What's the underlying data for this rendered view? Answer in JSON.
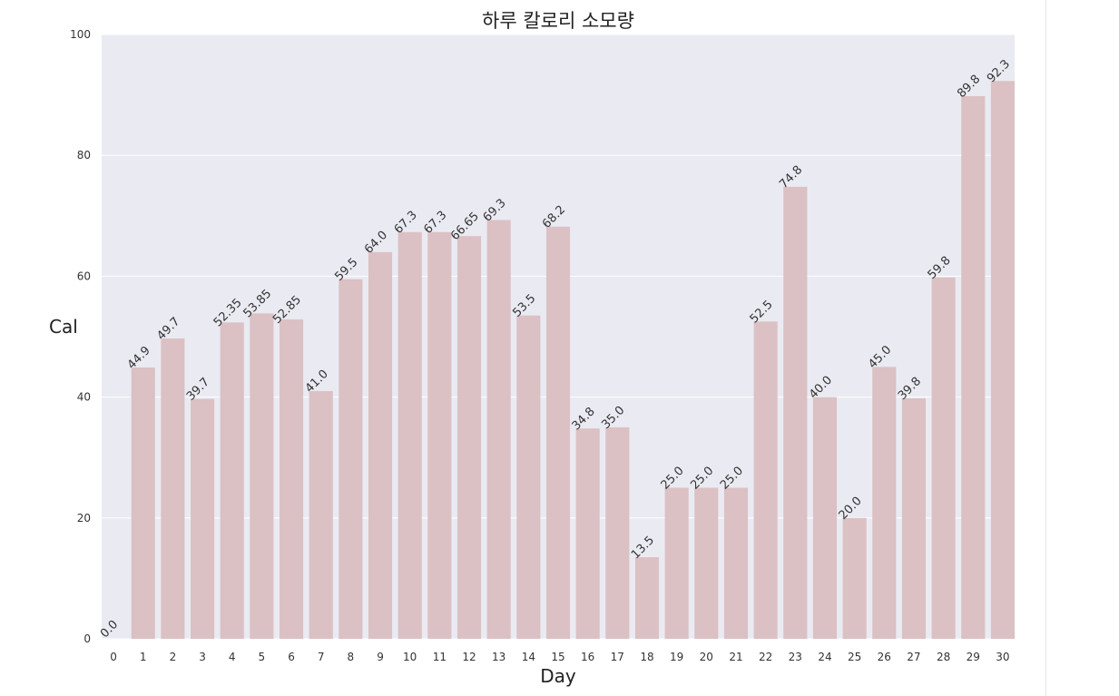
{
  "chart_data": {
    "type": "bar",
    "title": "하루 칼로리 소모량",
    "xlabel": "Day",
    "ylabel": "Cal",
    "categories": [
      "0",
      "1",
      "2",
      "3",
      "4",
      "5",
      "6",
      "7",
      "8",
      "9",
      "10",
      "11",
      "12",
      "13",
      "14",
      "15",
      "16",
      "17",
      "18",
      "19",
      "20",
      "21",
      "22",
      "23",
      "24",
      "25",
      "26",
      "27",
      "28",
      "29",
      "30"
    ],
    "values": [
      0,
      44.9,
      49.7,
      39.7,
      52.35,
      53.85,
      52.85,
      41,
      59.5,
      64,
      67.3,
      67.3,
      66.65,
      69.3,
      53.5,
      68.2,
      34.8,
      35,
      13.5,
      25,
      25,
      25,
      52.5,
      74.8,
      40,
      20,
      45,
      39.8,
      59.8,
      89.8,
      92.3
    ],
    "data_labels": [
      "0.0",
      "44.9",
      "49.7",
      "39.7",
      "52.35",
      "53.85",
      "52.85",
      "41.0",
      "59.5",
      "64.0",
      "67.3",
      "67.3",
      "66.65",
      "69.3",
      "53.5",
      "68.2",
      "34.8",
      "35.0",
      "13.5",
      "25.0",
      "25.0",
      "25.0",
      "52.5",
      "74.8",
      "40.0",
      "20.0",
      "45.0",
      "39.8",
      "59.8",
      "89.8",
      "92.3"
    ],
    "ylim": [
      0,
      100
    ],
    "yticks": [
      0,
      20,
      40,
      60,
      80,
      100
    ],
    "grid": true,
    "bar_color": "#dbc1c4",
    "plot_background": "#eaeaf2",
    "grid_color": "#ffffff"
  }
}
